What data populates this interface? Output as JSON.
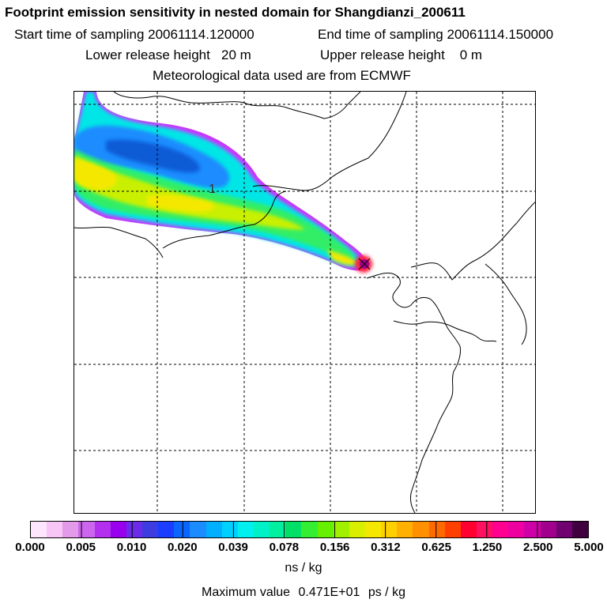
{
  "header": {
    "title": "Footprint emission sensitivity in nested domain for Shangdianzi_200611",
    "start_label": "Start time of sampling",
    "start_value": "20061114.120000",
    "end_label": "End time of sampling",
    "end_value": "20061114.150000",
    "lower_label": "Lower release height",
    "lower_value": "20 m",
    "upper_label": "Upper release height",
    "upper_value": "0 m",
    "met_label": "Meteorological data used are from ECMWF"
  },
  "map": {
    "contour_label": "1",
    "release_marker": "release-site-marker",
    "colors": {
      "white": "#ffffff",
      "purple_edge": "#cc33ff",
      "blue": "#1a8cff",
      "dark_blue": "#0a5cd6",
      "cyan": "#00e6e6",
      "green": "#33ee66",
      "lime": "#c8f000",
      "yellow": "#f5e800",
      "orange": "#ff9900",
      "red": "#ff2040",
      "magenta": "#e0007a"
    }
  },
  "colorbar": {
    "colors": [
      "#ffe6ff",
      "#f7c6f7",
      "#e39ae8",
      "#cc66ee",
      "#b330ee",
      "#9900ee",
      "#6a2ce8",
      "#3c3ce0",
      "#1a3dff",
      "#0a66ff",
      "#1a8cff",
      "#00b0ff",
      "#00d0ff",
      "#00f0f0",
      "#00f0c8",
      "#00f0a0",
      "#00e066",
      "#33ee33",
      "#66f000",
      "#a0f000",
      "#d8f000",
      "#f5e800",
      "#ffd000",
      "#ffb000",
      "#ff9000",
      "#ff6a00",
      "#ff4000",
      "#ff0030",
      "#ff1060",
      "#ff0090",
      "#ee00a0",
      "#d000a8",
      "#a0008c",
      "#700070",
      "#400040"
    ],
    "ticks": [
      "0.000",
      "0.005",
      "0.010",
      "0.020",
      "0.039",
      "0.078",
      "0.156",
      "0.312",
      "0.625",
      "1.250",
      "2.500",
      "5.000"
    ],
    "units": "ns / kg"
  },
  "footer": {
    "max_label": "Maximum value",
    "max_value": "0.471E+01",
    "max_unit": "ps / kg"
  }
}
